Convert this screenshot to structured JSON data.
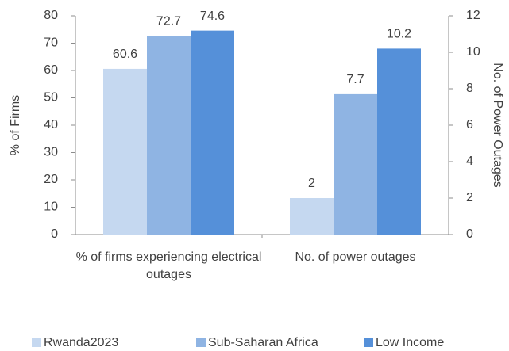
{
  "chart_data": {
    "type": "bar",
    "categories": [
      "% of firms experiencing electrical outages",
      "No. of power outages"
    ],
    "category_axes": [
      "y",
      "y2"
    ],
    "series": [
      {
        "name": "Rwanda2023",
        "color": "#c5d8f0",
        "values": [
          60.6,
          2
        ]
      },
      {
        "name": "Sub-Saharan Africa",
        "color": "#8fb4e3",
        "values": [
          72.7,
          7.7
        ]
      },
      {
        "name": "Low Income",
        "color": "#5590d9",
        "values": [
          74.6,
          10.2
        ]
      }
    ],
    "ylabel": "% of Firms",
    "y2label": "No. of Power Outages",
    "ylim": [
      0,
      80
    ],
    "yticks": [
      0,
      10,
      20,
      30,
      40,
      50,
      60,
      70,
      80
    ],
    "y2lim": [
      0,
      12
    ],
    "y2ticks": [
      0,
      2,
      4,
      6,
      8,
      10,
      12
    ],
    "legend": "bottom"
  }
}
